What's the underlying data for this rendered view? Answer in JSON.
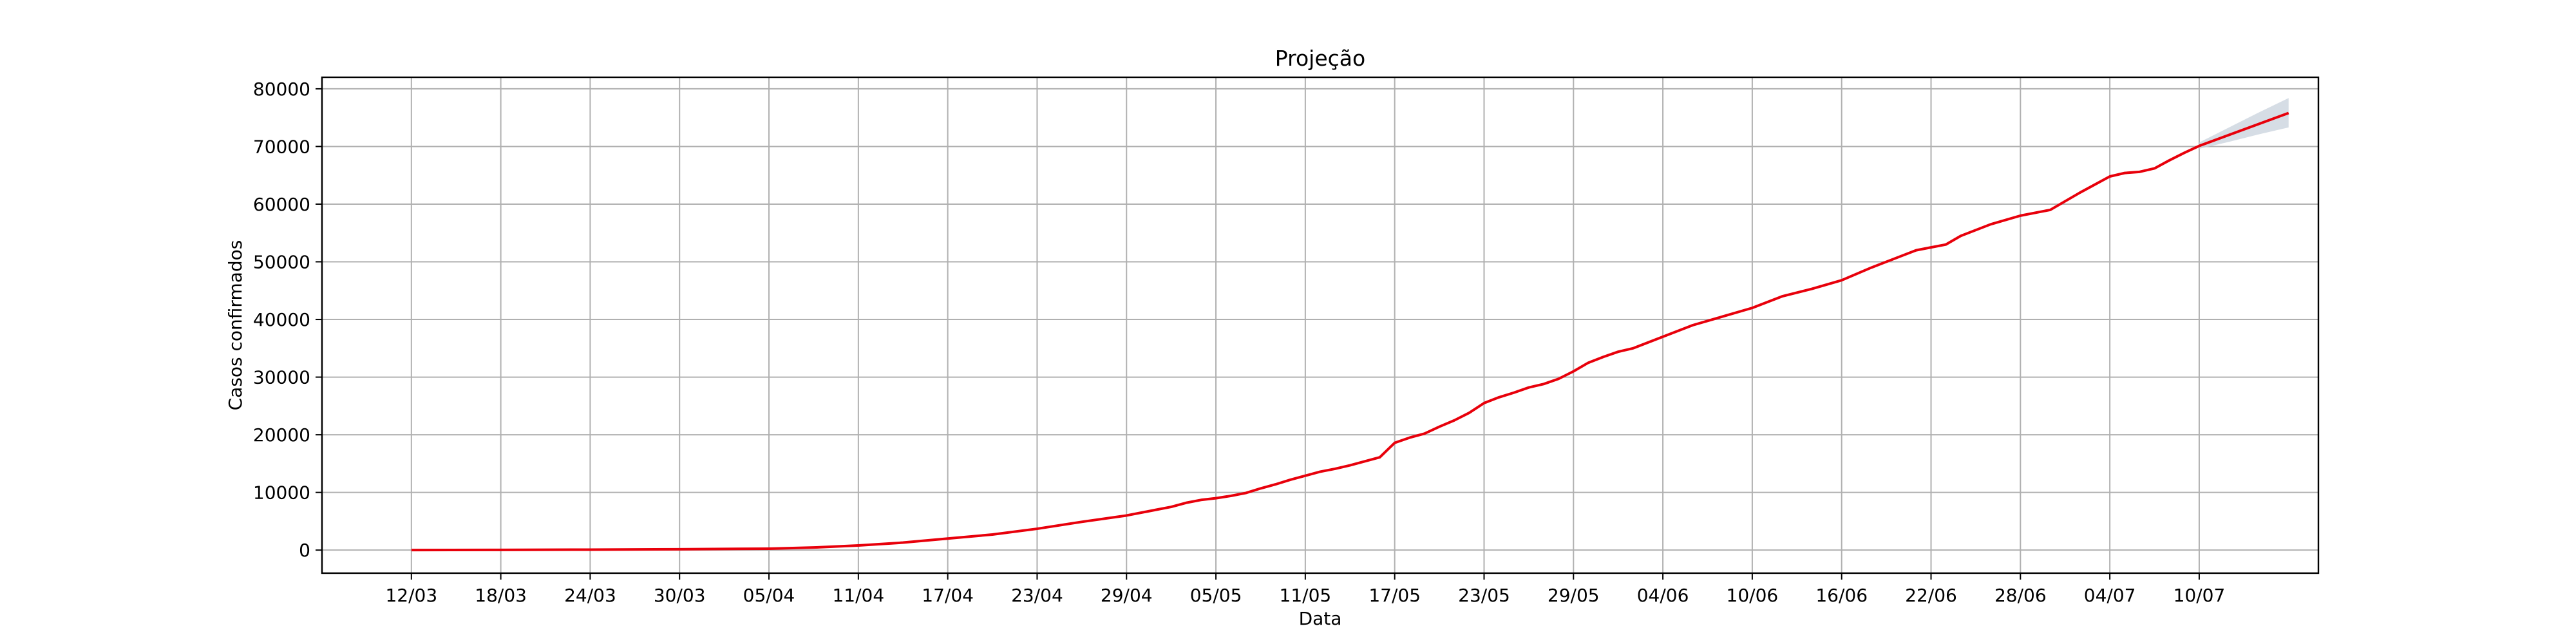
{
  "chart_data": {
    "type": "line",
    "title": "Projeção",
    "xlabel": "Data",
    "ylabel": "Casos confirmados",
    "x_tick_labels": [
      "12/03",
      "18/03",
      "24/03",
      "30/03",
      "05/04",
      "11/04",
      "17/04",
      "23/04",
      "29/04",
      "05/05",
      "11/05",
      "17/05",
      "23/05",
      "29/05",
      "04/06",
      "10/06",
      "16/06",
      "22/06",
      "28/06",
      "04/07",
      "10/07"
    ],
    "x_tick_day_index": [
      0,
      6,
      12,
      18,
      24,
      30,
      36,
      42,
      48,
      54,
      60,
      66,
      72,
      78,
      84,
      90,
      96,
      102,
      108,
      114,
      120
    ],
    "xlim_day_index": [
      -6,
      128
    ],
    "y_ticks": [
      0,
      10000,
      20000,
      30000,
      40000,
      50000,
      60000,
      70000,
      80000
    ],
    "ylim": [
      -4000,
      82000
    ],
    "grid": true,
    "colors": {
      "line": "#e8000b",
      "band": "#c8d2dc",
      "grid": "#b0b0b0"
    },
    "series": [
      {
        "day_index": [
          0,
          6,
          12,
          18,
          24,
          27,
          30,
          33,
          36,
          39,
          42,
          45,
          48,
          50,
          51,
          52,
          53,
          54,
          55,
          56,
          57,
          58,
          59,
          60,
          61,
          62,
          63,
          64,
          65,
          66,
          67,
          68,
          69,
          70,
          71,
          72,
          73,
          74,
          75,
          76,
          77,
          78,
          79,
          80,
          81,
          82,
          84,
          86,
          88,
          90,
          92,
          94,
          96,
          98,
          100,
          101,
          102,
          103,
          104,
          106,
          108,
          110,
          112,
          114,
          115,
          116,
          117,
          118,
          119,
          120
        ],
        "values": [
          10,
          40,
          80,
          150,
          250,
          450,
          800,
          1300,
          2000,
          2700,
          3700,
          4900,
          6000,
          7000,
          7500,
          8200,
          8700,
          9000,
          9400,
          9900,
          10700,
          11400,
          12200,
          12900,
          13600,
          14100,
          14700,
          15400,
          16100,
          18600,
          19500,
          20200,
          21400,
          22500,
          23800,
          25500,
          26500,
          27300,
          28200,
          28800,
          29700,
          31000,
          32500,
          33500,
          34400,
          35000,
          37000,
          39000,
          40500,
          42000,
          44000,
          45300,
          46800,
          49000,
          51000,
          52000,
          52500,
          53000,
          54500,
          56500,
          58000,
          59000,
          62000,
          64800,
          65400,
          65600,
          66200,
          67600,
          68900,
          70100
        ],
        "projection_day_index": [
          120,
          122,
          124,
          126
        ],
        "projection_values": [
          70100,
          72000,
          73900,
          75800
        ],
        "band_lower": [
          69600,
          70800,
          72100,
          73300
        ],
        "band_upper": [
          70700,
          73300,
          75900,
          78400
        ]
      }
    ]
  }
}
